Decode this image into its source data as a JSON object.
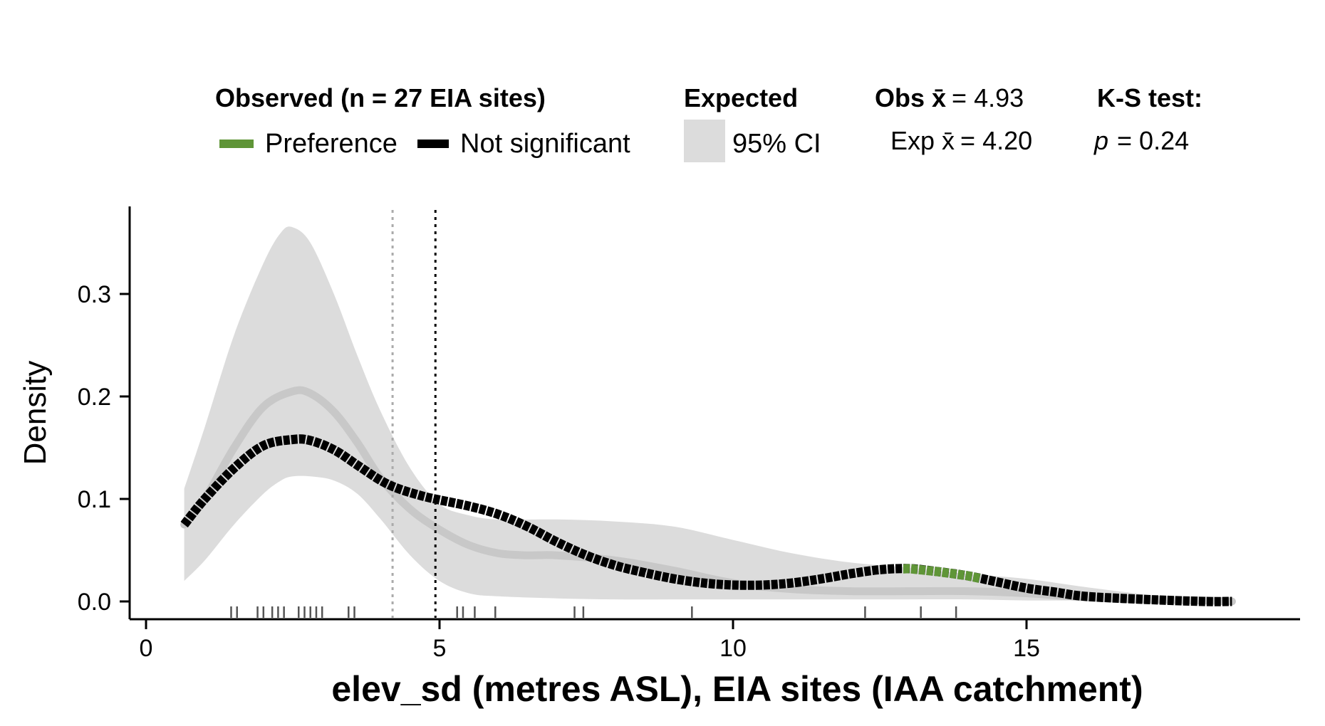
{
  "legend": {
    "observed_title": "Observed (n = 27 EIA sites)",
    "preference_label": "Preference",
    "not_significant_label": "Not significant",
    "expected_title": "Expected",
    "ci_label": "95% CI",
    "obs_mean_prefix": "Obs ",
    "obs_mean_value": "= 4.93",
    "exp_mean_prefix": "Exp ",
    "exp_mean_value": "= 4.20",
    "ks_title": "K-S test:",
    "ks_p_symbol": "p",
    "ks_p_value": "= 0.24"
  },
  "colors": {
    "preference": "#5f9537",
    "not_significant": "#000000",
    "ci_band": "#dcdcdc",
    "expected_line": "#c8c8c8",
    "expected_mean_line": "#aaaaaa",
    "observed_mean_line": "#000000",
    "rug": "#555555"
  },
  "chart_data": {
    "type": "line",
    "xlabel": "elev_sd (metres ASL), EIA sites (IAA catchment)",
    "ylabel": "Density",
    "xlim": [
      0,
      19.7
    ],
    "ylim": [
      0,
      0.38
    ],
    "x_ticks": [
      0,
      5,
      10,
      15
    ],
    "y_ticks": [
      0.0,
      0.1,
      0.2,
      0.3
    ],
    "x_tick_labels": [
      "0",
      "5",
      "10",
      "15"
    ],
    "y_tick_labels": [
      "0.0",
      "0.1",
      "0.2",
      "0.3"
    ],
    "observed_mean": 4.93,
    "expected_mean": 4.2,
    "ks_p": 0.24,
    "expected_ci": {
      "x": [
        0.65,
        1.0,
        1.5,
        2.0,
        2.3,
        2.5,
        2.8,
        3.2,
        3.6,
        4.0,
        4.5,
        5.0,
        5.5,
        6.0,
        7.0,
        8.0,
        9.0,
        10.0,
        11.0,
        12.0,
        13.0,
        14.0,
        15.0,
        16.0,
        17.0,
        18.0,
        18.5
      ],
      "lower": [
        0.02,
        0.04,
        0.075,
        0.105,
        0.118,
        0.122,
        0.122,
        0.118,
        0.105,
        0.08,
        0.045,
        0.02,
        0.008,
        0.005,
        0.003,
        0.002,
        0.002,
        0.002,
        0.002,
        0.002,
        0.002,
        0.002,
        0.001,
        0.001,
        0.0,
        0.0,
        0.0
      ],
      "upper": [
        0.11,
        0.17,
        0.26,
        0.33,
        0.36,
        0.365,
        0.35,
        0.3,
        0.24,
        0.185,
        0.13,
        0.095,
        0.084,
        0.08,
        0.08,
        0.078,
        0.073,
        0.06,
        0.047,
        0.038,
        0.033,
        0.027,
        0.022,
        0.014,
        0.007,
        0.002,
        0.001
      ]
    },
    "series": [
      {
        "name": "Expected",
        "x": [
          0.65,
          1.0,
          1.5,
          2.0,
          2.5,
          2.8,
          3.2,
          3.6,
          4.0,
          4.5,
          5.0,
          5.5,
          6.0,
          6.5,
          7.0,
          8.0,
          9.0,
          10.0,
          11.0,
          12.0,
          13.0,
          14.0,
          15.0,
          16.0,
          17.0,
          18.0,
          18.5
        ],
        "values": [
          0.075,
          0.1,
          0.15,
          0.19,
          0.205,
          0.203,
          0.185,
          0.155,
          0.12,
          0.09,
          0.07,
          0.055,
          0.047,
          0.045,
          0.045,
          0.04,
          0.03,
          0.018,
          0.012,
          0.01,
          0.01,
          0.01,
          0.008,
          0.004,
          0.002,
          0.001,
          0.0
        ]
      },
      {
        "name": "Observed",
        "x": [
          0.65,
          1.0,
          1.5,
          2.0,
          2.5,
          2.8,
          3.2,
          3.6,
          4.0,
          4.3,
          4.7,
          5.0,
          5.5,
          6.0,
          6.5,
          7.0,
          7.5,
          8.0,
          8.5,
          9.0,
          9.5,
          10.0,
          10.5,
          11.0,
          11.5,
          12.0,
          12.5,
          13.0,
          13.5,
          14.0,
          14.5,
          15.0,
          15.5,
          16.0,
          17.0,
          18.0,
          18.5
        ],
        "values": [
          0.075,
          0.1,
          0.13,
          0.152,
          0.158,
          0.157,
          0.148,
          0.133,
          0.118,
          0.11,
          0.103,
          0.099,
          0.093,
          0.085,
          0.073,
          0.058,
          0.045,
          0.035,
          0.028,
          0.022,
          0.018,
          0.016,
          0.016,
          0.018,
          0.022,
          0.027,
          0.031,
          0.032,
          0.029,
          0.025,
          0.019,
          0.013,
          0.009,
          0.005,
          0.002,
          0.0,
          0.0
        ],
        "preference_range": [
          12.9,
          14.2
        ]
      }
    ],
    "rug": [
      1.45,
      1.55,
      1.9,
      2.0,
      2.15,
      2.25,
      2.35,
      2.6,
      2.7,
      2.8,
      2.9,
      3.0,
      3.45,
      3.55,
      5.3,
      5.4,
      5.6,
      5.95,
      7.3,
      7.45,
      9.3,
      12.25,
      13.2,
      13.8
    ]
  }
}
